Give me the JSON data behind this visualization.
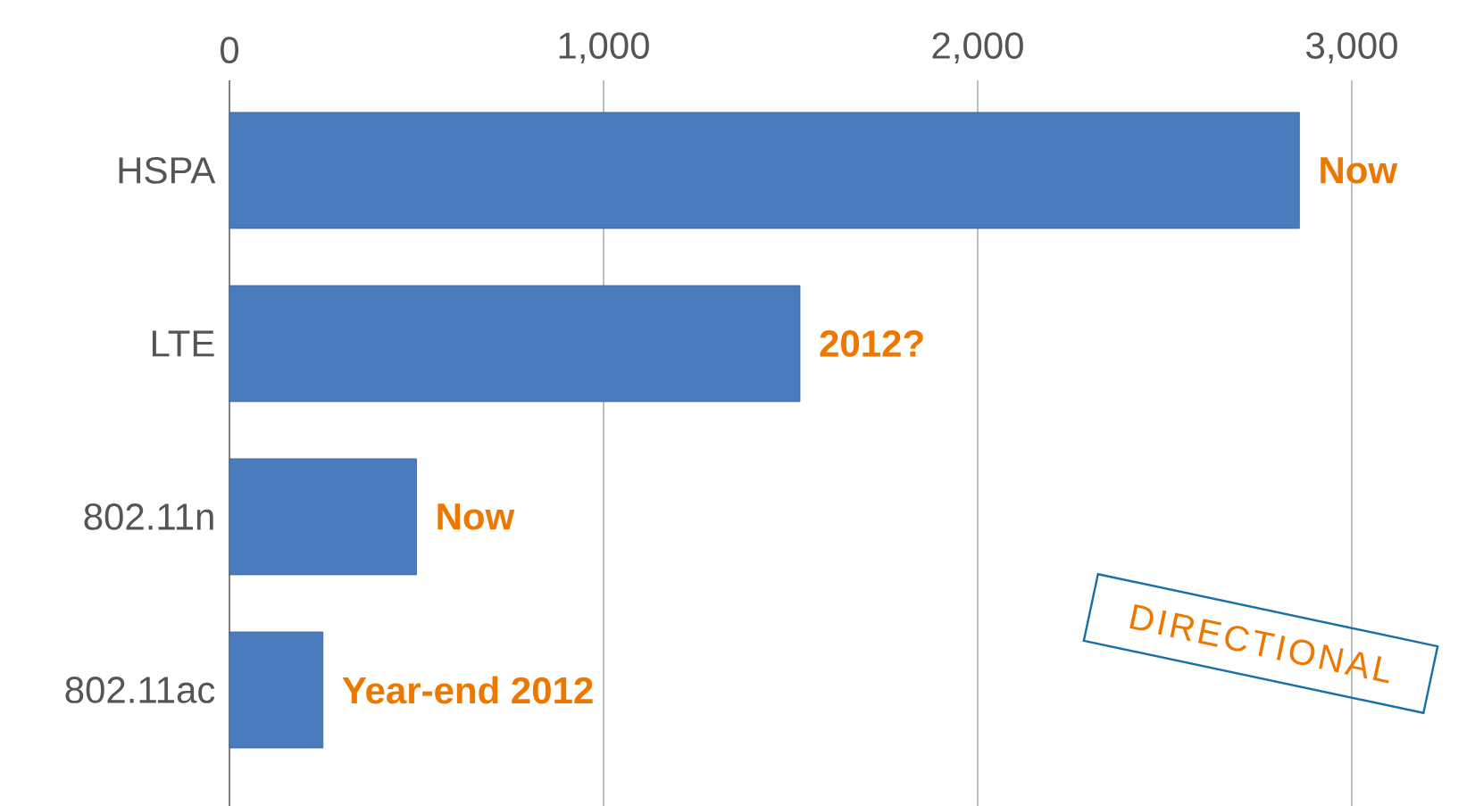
{
  "chart_data": {
    "type": "bar",
    "orientation": "horizontal",
    "categories": [
      "HSPA",
      "LTE",
      "802.11n",
      "802.11ac"
    ],
    "values": [
      2860,
      1525,
      500,
      250
    ],
    "color": "#4a7bbd",
    "xlim": [
      0,
      3000
    ],
    "xticks": [
      {
        "value": 0,
        "label": "0"
      },
      {
        "value": 1000,
        "label": "1,000"
      },
      {
        "value": 2000,
        "label": "2,000"
      },
      {
        "value": 3000,
        "label": "3,000"
      }
    ],
    "grid": "x",
    "annotations": [
      {
        "text": "Now",
        "x": 2860,
        "y": "HSPA"
      },
      {
        "text": "2012?",
        "x": 1525,
        "y": "LTE"
      },
      {
        "text": "Now",
        "x": 500,
        "y": "802.11n"
      },
      {
        "text": "Year-end 2012",
        "x": 250,
        "y": "802.11ac"
      },
      "DIRECTIONAL"
    ]
  }
}
